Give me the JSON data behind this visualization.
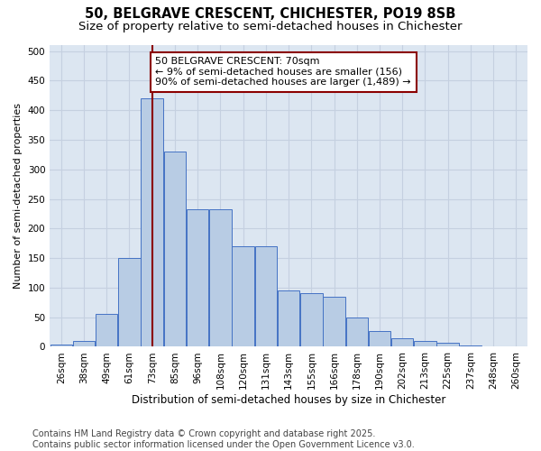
{
  "title1": "50, BELGRAVE CRESCENT, CHICHESTER, PO19 8SB",
  "title2": "Size of property relative to semi-detached houses in Chichester",
  "xlabel": "Distribution of semi-detached houses by size in Chichester",
  "ylabel": "Number of semi-detached properties",
  "footnote1": "Contains HM Land Registry data © Crown copyright and database right 2025.",
  "footnote2": "Contains public sector information licensed under the Open Government Licence v3.0.",
  "categories": [
    "26sqm",
    "38sqm",
    "49sqm",
    "61sqm",
    "73sqm",
    "85sqm",
    "96sqm",
    "108sqm",
    "120sqm",
    "131sqm",
    "143sqm",
    "155sqm",
    "166sqm",
    "178sqm",
    "190sqm",
    "202sqm",
    "213sqm",
    "225sqm",
    "237sqm",
    "248sqm",
    "260sqm"
  ],
  "values": [
    4,
    10,
    55,
    150,
    420,
    330,
    232,
    232,
    170,
    170,
    95,
    90,
    85,
    50,
    27,
    15,
    10,
    7,
    2,
    1,
    1
  ],
  "bar_color": "#b8cce4",
  "bar_edge_color": "#4472c4",
  "bg_color": "#dce6f1",
  "grid_color": "#c5d0e0",
  "vline_color": "#8B0000",
  "annotation_title": "50 BELGRAVE CRESCENT: 70sqm",
  "annotation_line1": "← 9% of semi-detached houses are smaller (156)",
  "annotation_line2": "90% of semi-detached houses are larger (1,489) →",
  "annotation_box_color": "#ffffff",
  "annotation_edge_color": "#8B0000",
  "ylim": [
    0,
    510
  ],
  "yticks": [
    0,
    50,
    100,
    150,
    200,
    250,
    300,
    350,
    400,
    450,
    500
  ],
  "title1_fontsize": 10.5,
  "title2_fontsize": 9.5,
  "xlabel_fontsize": 8.5,
  "ylabel_fontsize": 8,
  "tick_fontsize": 7.5,
  "annot_fontsize": 8,
  "footnote_fontsize": 7
}
